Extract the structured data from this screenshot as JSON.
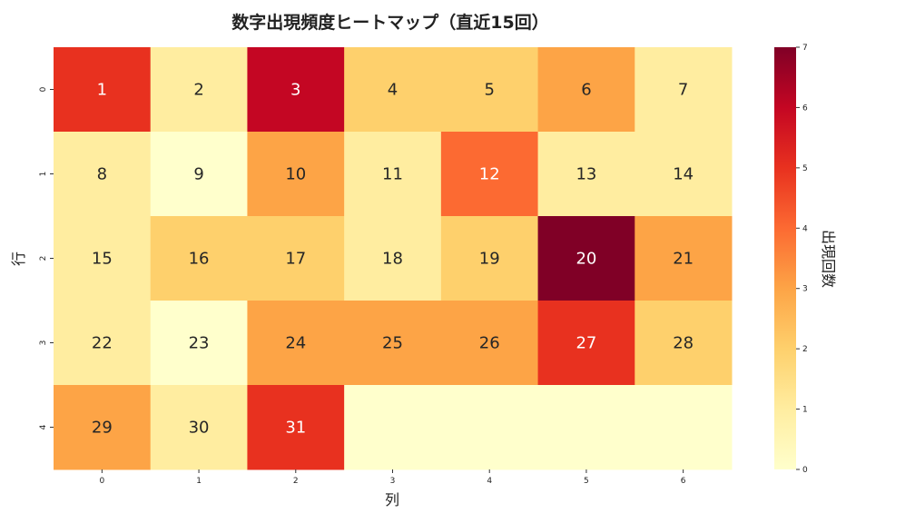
{
  "chart_data": {
    "type": "heatmap",
    "title": "数字出現頻度ヒートマップ（直近15回）",
    "xlabel": "列",
    "ylabel": "行",
    "x_ticks": [
      "0",
      "1",
      "2",
      "3",
      "4",
      "5",
      "6"
    ],
    "y_ticks": [
      "0",
      "1",
      "2",
      "3",
      "4"
    ],
    "colorbar": {
      "label": "出現回数",
      "range": [
        0,
        7
      ],
      "ticks": [
        "0",
        "1",
        "2",
        "3",
        "4",
        "5",
        "6",
        "7"
      ],
      "colormap": "YlOrRd",
      "colors": [
        "#ffffcc",
        "#ffeda0",
        "#fed06c",
        "#fda446",
        "#fc6a32",
        "#e8311f",
        "#c40623",
        "#800026"
      ]
    },
    "values": [
      [
        5,
        1,
        6,
        2,
        2,
        3,
        1
      ],
      [
        1,
        0,
        3,
        1,
        4,
        1,
        1
      ],
      [
        1,
        2,
        2,
        1,
        2,
        7,
        3
      ],
      [
        1,
        0,
        3,
        3,
        3,
        5,
        2
      ],
      [
        3,
        1,
        5,
        0,
        0,
        0,
        0
      ]
    ],
    "cell_labels": [
      [
        "1",
        "2",
        "3",
        "4",
        "5",
        "6",
        "7"
      ],
      [
        "8",
        "9",
        "10",
        "11",
        "12",
        "13",
        "14"
      ],
      [
        "15",
        "16",
        "17",
        "18",
        "19",
        "20",
        "21"
      ],
      [
        "22",
        "23",
        "24",
        "25",
        "26",
        "27",
        "28"
      ],
      [
        "29",
        "30",
        "31",
        "",
        "",
        "",
        ""
      ]
    ]
  }
}
